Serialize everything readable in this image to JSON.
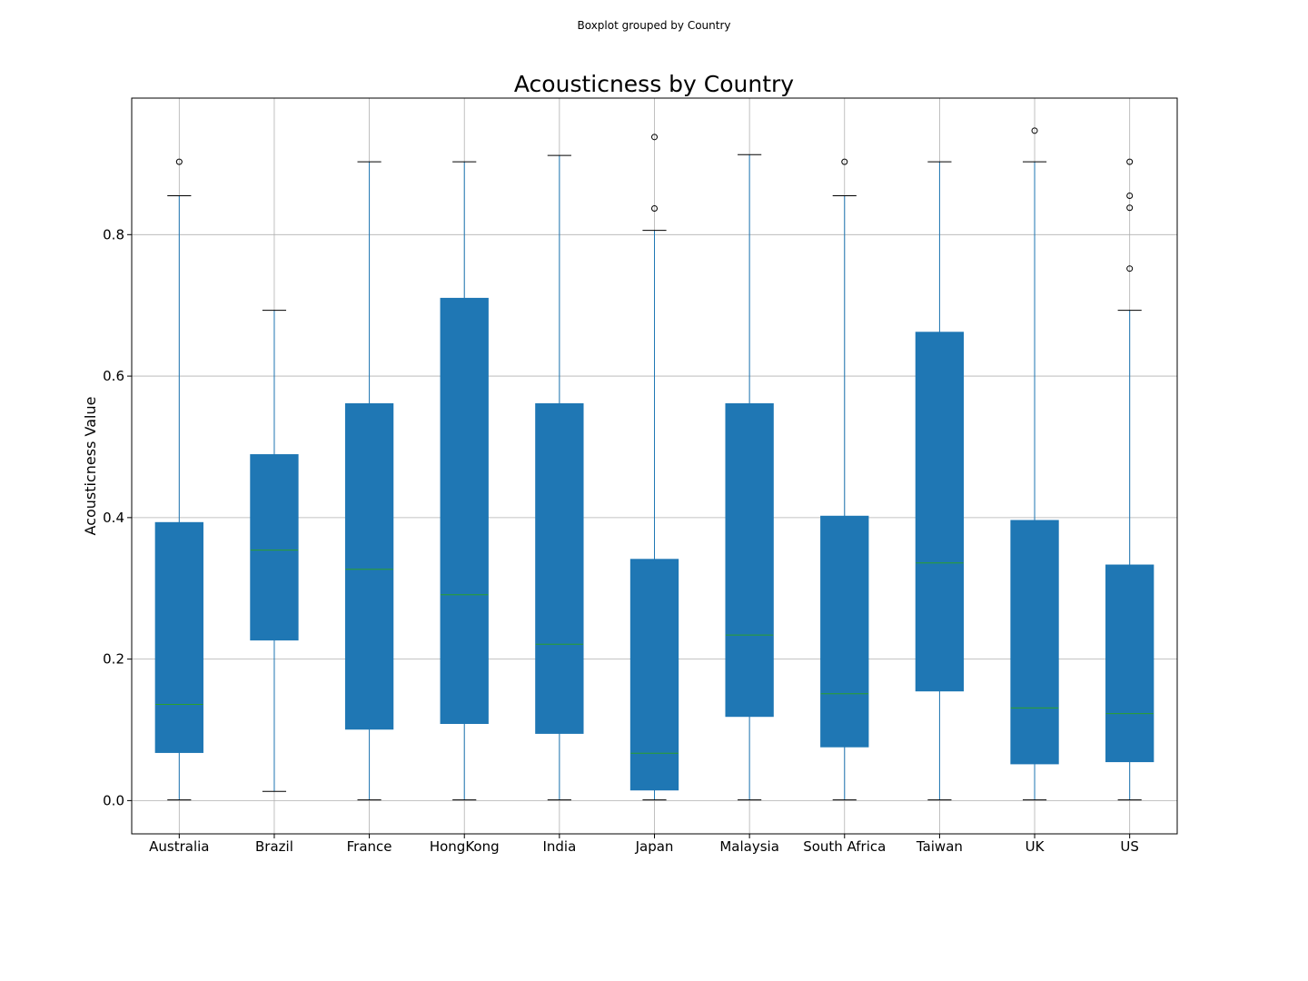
{
  "chart_data": {
    "type": "boxplot",
    "suptitle": "Boxplot grouped by Country",
    "title": "Acousticness by Country",
    "xlabel": "",
    "ylabel": "Acousticness Value",
    "ylim": [
      -0.047,
      0.993
    ],
    "yticks": [
      0.0,
      0.2,
      0.4,
      0.6,
      0.8
    ],
    "ytick_labels": [
      "0.0",
      "0.2",
      "0.4",
      "0.6",
      "0.8"
    ],
    "grid": true,
    "box_color": "#1f77b4",
    "median_color": "#2ca02c",
    "categories": [
      "Australia",
      "Brazil",
      "France",
      "HongKong",
      "India",
      "Japan",
      "Malaysia",
      "South Africa",
      "Taiwan",
      "UK",
      "US"
    ],
    "boxes": [
      {
        "whislo": 0.001,
        "q1": 0.068,
        "med": 0.136,
        "q3": 0.393,
        "whishi": 0.855,
        "fliers": [
          0.903
        ]
      },
      {
        "whislo": 0.013,
        "q1": 0.227,
        "med": 0.354,
        "q3": 0.489,
        "whishi": 0.693,
        "fliers": []
      },
      {
        "whislo": 0.001,
        "q1": 0.101,
        "med": 0.327,
        "q3": 0.561,
        "whishi": 0.903,
        "fliers": []
      },
      {
        "whislo": 0.001,
        "q1": 0.109,
        "med": 0.291,
        "q3": 0.71,
        "whishi": 0.903,
        "fliers": []
      },
      {
        "whislo": 0.001,
        "q1": 0.095,
        "med": 0.221,
        "q3": 0.561,
        "whishi": 0.912,
        "fliers": []
      },
      {
        "whislo": 0.001,
        "q1": 0.015,
        "med": 0.067,
        "q3": 0.341,
        "whishi": 0.806,
        "fliers": [
          0.837,
          0.938
        ]
      },
      {
        "whislo": 0.001,
        "q1": 0.119,
        "med": 0.234,
        "q3": 0.561,
        "whishi": 0.913,
        "fliers": []
      },
      {
        "whislo": 0.001,
        "q1": 0.076,
        "med": 0.151,
        "q3": 0.402,
        "whishi": 0.855,
        "fliers": [
          0.903
        ]
      },
      {
        "whislo": 0.001,
        "q1": 0.155,
        "med": 0.336,
        "q3": 0.662,
        "whishi": 0.903,
        "fliers": []
      },
      {
        "whislo": 0.001,
        "q1": 0.052,
        "med": 0.131,
        "q3": 0.396,
        "whishi": 0.903,
        "fliers": [
          0.947
        ]
      },
      {
        "whislo": 0.001,
        "q1": 0.055,
        "med": 0.123,
        "q3": 0.333,
        "whishi": 0.693,
        "fliers": [
          0.752,
          0.838,
          0.855,
          0.903
        ]
      }
    ]
  }
}
